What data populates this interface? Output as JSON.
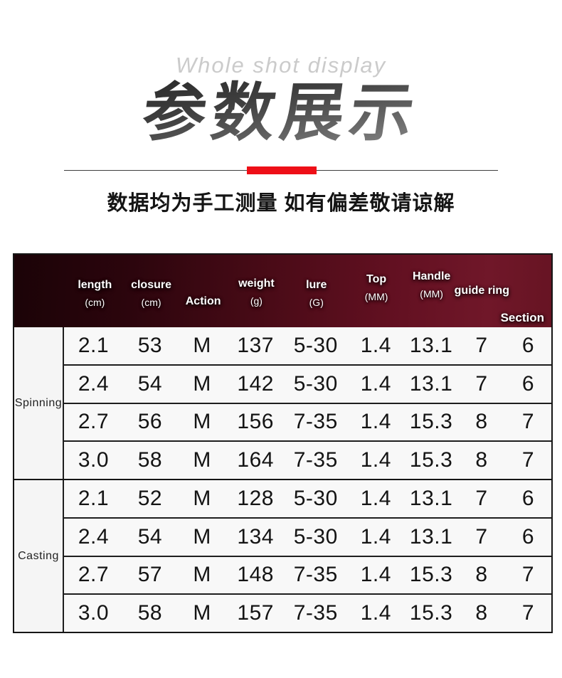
{
  "hero": {
    "eyebrow": "Whole shot display",
    "title": "参数展示",
    "disclaimer": "数据均为手工测量 如有偏差敬请谅解",
    "accent_color": "#ee0f17"
  },
  "table": {
    "header_bg_dark": "#1b0307",
    "header_bg_light": "#701729",
    "columns": [
      {
        "label": "length",
        "sub": "(cm)"
      },
      {
        "label": "closure",
        "sub": "(cm)"
      },
      {
        "label": "Action",
        "sub": ""
      },
      {
        "label": "weight",
        "sub": "(g)"
      },
      {
        "label": "lure",
        "sub": "(G)"
      },
      {
        "label": "Top",
        "sub": "(MM)"
      },
      {
        "label": "Handle",
        "sub": "(MM)"
      },
      {
        "label": "guide ring",
        "sub": ""
      },
      {
        "label": "Section",
        "sub": ""
      }
    ],
    "groups": [
      {
        "label": "Spinning",
        "rows": [
          [
            "2.1",
            "53",
            "M",
            "137",
            "5-30",
            "1.4",
            "13.1",
            "7",
            "6"
          ],
          [
            "2.4",
            "54",
            "M",
            "142",
            "5-30",
            "1.4",
            "13.1",
            "7",
            "6"
          ],
          [
            "2.7",
            "56",
            "M",
            "156",
            "7-35",
            "1.4",
            "15.3",
            "8",
            "7"
          ],
          [
            "3.0",
            "58",
            "M",
            "164",
            "7-35",
            "1.4",
            "15.3",
            "8",
            "7"
          ]
        ]
      },
      {
        "label": "Casting",
        "rows": [
          [
            "2.1",
            "52",
            "M",
            "128",
            "5-30",
            "1.4",
            "13.1",
            "7",
            "6"
          ],
          [
            "2.4",
            "54",
            "M",
            "134",
            "5-30",
            "1.4",
            "13.1",
            "7",
            "6"
          ],
          [
            "2.7",
            "57",
            "M",
            "148",
            "7-35",
            "1.4",
            "15.3",
            "8",
            "7"
          ],
          [
            "3.0",
            "58",
            "M",
            "157",
            "7-35",
            "1.4",
            "15.3",
            "8",
            "7"
          ]
        ]
      }
    ]
  }
}
